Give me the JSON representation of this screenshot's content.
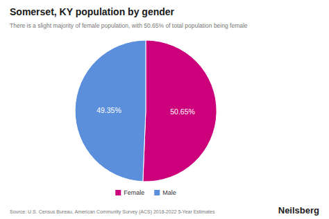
{
  "chart_data": {
    "type": "pie",
    "title": "Somerset, KY population by gender",
    "subtitle": "There is a slight majority of female population, with 50.65% of total population being female",
    "categories": [
      "Female",
      "Male"
    ],
    "values": [
      50.65,
      49.35
    ],
    "value_labels": [
      "50.65%",
      "49.35%"
    ],
    "colors": [
      "#cc007a",
      "#5b8edb"
    ],
    "data_labels": true,
    "legend": "bottom",
    "annotations": [
      "Source: U.S. Census Bureau, American Community Survey (ACS) 2018-2022 5-Year Estimates",
      "Neilsberg"
    ]
  }
}
